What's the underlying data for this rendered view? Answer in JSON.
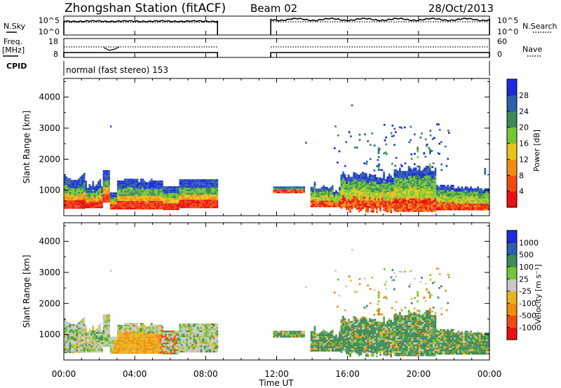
{
  "header": {
    "station": "Zhongshan Station (fitACF)",
    "beam": "Beam 02",
    "date": "28/Oct/2013"
  },
  "panel_labels": {
    "nsky": "N.Sky",
    "nsearch": "N.Search",
    "freq_line1": "Freq.",
    "freq_line2": "[MHz]",
    "nave": "Nave",
    "cpid": "CPID",
    "cpid_text": "normal (fast stereo) 153"
  },
  "colors": {
    "power": [
      "#1c2bd9",
      "#2f5fa8",
      "#3c8a5a",
      "#72c832",
      "#e9c31c",
      "#f08c10",
      "#ef4a10",
      "#e81010"
    ],
    "velocity": [
      "#1c2bd9",
      "#2f5fa8",
      "#3c8a5a",
      "#72c832",
      "#c8c8c8",
      "#e9b31c",
      "#f08c10",
      "#ef4a10",
      "#e81010"
    ],
    "velocity_ground": "#bdbdbd"
  },
  "chart_data": [
    {
      "type": "line",
      "panel": "N.Sky / N.Search",
      "y_ticks_left": [
        "10^5",
        "10^0"
      ],
      "y_ticks_right": [
        "10^5",
        "10^0"
      ],
      "segments": [
        {
          "x_start": "00:00",
          "x_end": "08:40",
          "nsky_level": 0.73,
          "nsearch_level": 0.67
        },
        {
          "x_start": "11:40",
          "x_end": "24:00",
          "nsky_level": 0.82,
          "nsearch_level": 0.7
        }
      ]
    },
    {
      "type": "line",
      "panel": "Freq. [MHz] / Nave",
      "y_ticks_left": [
        "18",
        "8"
      ],
      "y_ticks_right": [
        "60",
        "0"
      ],
      "segments": [
        {
          "x_start": "00:00",
          "x_end": "08:40"
        },
        {
          "x_start": "11:40",
          "x_end": "24:00"
        }
      ]
    },
    {
      "type": "heatmap",
      "panel": "Power",
      "ylabel": "Slant Range [km]",
      "ylim": [
        180,
        4600
      ],
      "y_ticks": [
        "4000",
        "3000",
        "2000",
        "1000"
      ],
      "y_tick_values": [
        4000,
        3000,
        2000,
        1000
      ],
      "colorbar_label": "Power [dB]",
      "colorbar_ticks": [
        "28",
        "24",
        "20",
        "16",
        "12",
        "8",
        "4"
      ],
      "colorbar_range": [
        0,
        32
      ]
    },
    {
      "type": "heatmap",
      "panel": "Velocity",
      "ylabel": "Slant Range [km]",
      "ylim": [
        180,
        4600
      ],
      "y_ticks": [
        "4000",
        "3000",
        "2000",
        "1000"
      ],
      "y_tick_values": [
        4000,
        3000,
        2000,
        1000
      ],
      "colorbar_label": "Velocity [m s⁻¹]",
      "colorbar_ticks": [
        "1000",
        "500",
        "100",
        "25",
        "-25",
        "-100",
        "-500",
        "-1000"
      ],
      "xlabel": "Time UT",
      "x_ticks": [
        "00:00",
        "04:00",
        "08:00",
        "12:00",
        "16:00",
        "20:00",
        "00:00"
      ],
      "xlim_hours": [
        0,
        24
      ]
    }
  ]
}
